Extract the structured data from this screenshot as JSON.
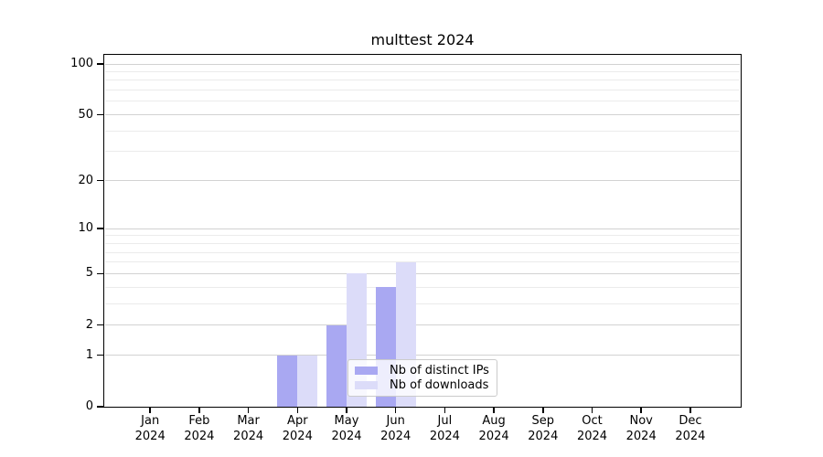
{
  "chart_data": {
    "type": "bar",
    "title": "multtest 2024",
    "categories": [
      "Jan",
      "Feb",
      "Mar",
      "Apr",
      "May",
      "Jun",
      "Jul",
      "Aug",
      "Sep",
      "Oct",
      "Nov",
      "Dec"
    ],
    "x_tick_year": "2024",
    "series": [
      {
        "name": "Nb of distinct IPs",
        "color": "#a9a8f2",
        "values": [
          0,
          0,
          0,
          1,
          2,
          4,
          0,
          0,
          0,
          0,
          0,
          0
        ]
      },
      {
        "name": "Nb of downloads",
        "color": "#dcdcf9",
        "values": [
          0,
          0,
          0,
          1,
          5,
          6,
          0,
          0,
          0,
          0,
          0,
          0
        ]
      }
    ],
    "xlabel": "",
    "ylabel": "",
    "y_axis": {
      "scale": "log1p",
      "ticks": [
        0,
        1,
        2,
        5,
        10,
        20,
        50,
        100
      ],
      "minor_gridlines": [
        3,
        4,
        6,
        7,
        8,
        9,
        30,
        40,
        60,
        70,
        80,
        90
      ],
      "ylim": [
        0,
        113
      ]
    },
    "grid": true,
    "legend_position": "lower center-right, inside plot"
  },
  "colors": {
    "background": "#ffffff",
    "axis": "#000000",
    "major_grid": "#d2d2d2",
    "minor_grid": "#ebebeb",
    "legend_border": "#cbcbcb",
    "legend_background": "rgba(255,255,255,0.8)"
  }
}
